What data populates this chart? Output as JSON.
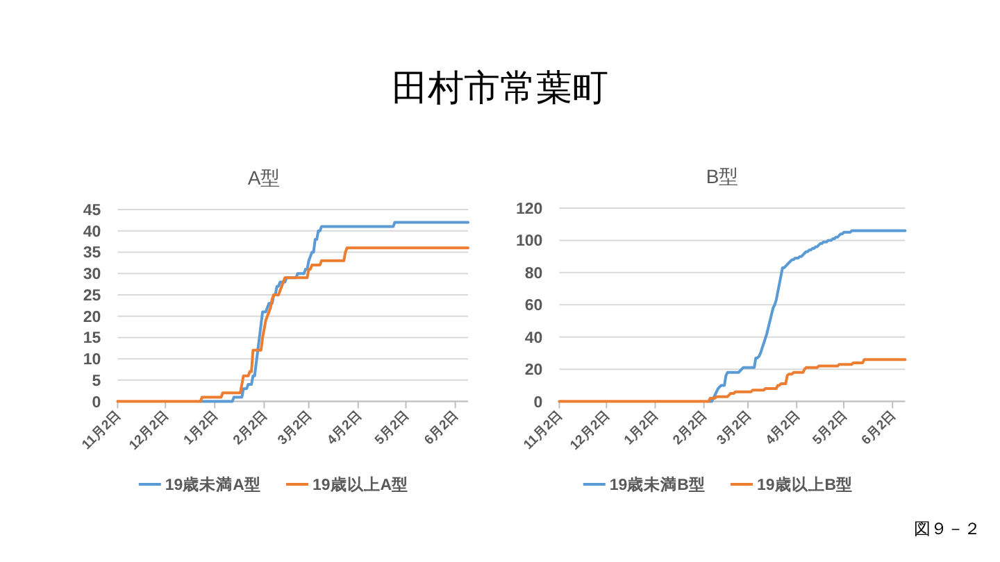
{
  "chart_data": [
    {
      "type": "other",
      "title": "田村市常葉町",
      "annotations": [
        "図９－２"
      ]
    },
    {
      "type": "line",
      "title": "A型",
      "categories": [
        "11月2日",
        null,
        null,
        null,
        null,
        null,
        null,
        null,
        null,
        null,
        null,
        null,
        null,
        null,
        null,
        null,
        null,
        null,
        null,
        null,
        null,
        null,
        null,
        null,
        null,
        null,
        null,
        null,
        null,
        null,
        "12月2日",
        null,
        null,
        null,
        null,
        null,
        null,
        null,
        null,
        null,
        null,
        null,
        null,
        null,
        null,
        null,
        null,
        null,
        null,
        null,
        null,
        null,
        null,
        null,
        null,
        null,
        null,
        null,
        null,
        null,
        null,
        "1月2日",
        null,
        null,
        null,
        null,
        null,
        null,
        null,
        null,
        null,
        null,
        null,
        null,
        null,
        null,
        null,
        null,
        null,
        null,
        null,
        null,
        null,
        null,
        null,
        null,
        null,
        null,
        null,
        null,
        null,
        null,
        "2月2日",
        null,
        null,
        null,
        null,
        null,
        null,
        null,
        null,
        null,
        null,
        null,
        null,
        null,
        null,
        null,
        null,
        null,
        null,
        null,
        null,
        null,
        null,
        null,
        null,
        null,
        null,
        null,
        "3月2日",
        null,
        null,
        null,
        null,
        null,
        null,
        null,
        null,
        null,
        null,
        null,
        null,
        null,
        null,
        null,
        null,
        null,
        null,
        null,
        null,
        null,
        null,
        null,
        null,
        null,
        null,
        null,
        null,
        null,
        null,
        "4月2日",
        null,
        null,
        null,
        null,
        null,
        null,
        null,
        null,
        null,
        null,
        null,
        null,
        null,
        null,
        null,
        null,
        null,
        null,
        null,
        null,
        null,
        null,
        null,
        null,
        null,
        null,
        null,
        null,
        null,
        "5月2日",
        null,
        null,
        null,
        null,
        null,
        null,
        null,
        null,
        null,
        null,
        null,
        null,
        null,
        null,
        null,
        null,
        null,
        null,
        null,
        null,
        null,
        null,
        null,
        null,
        null,
        null,
        null,
        null,
        null,
        null,
        "6月2日",
        null,
        null,
        null,
        null,
        null,
        null,
        null,
        null
      ],
      "ylim": [
        0,
        45
      ],
      "yticks": [
        0,
        5,
        10,
        15,
        20,
        25,
        30,
        35,
        40,
        45
      ],
      "grid": "y",
      "legend": "bottom",
      "series": [
        {
          "name": "19歳未満A型",
          "color": "#5b9bd5",
          "values": [
            null,
            null,
            null,
            null,
            null,
            null,
            null,
            null,
            null,
            null,
            null,
            null,
            null,
            null,
            null,
            null,
            null,
            null,
            null,
            null,
            null,
            null,
            null,
            null,
            null,
            null,
            null,
            null,
            null,
            null,
            null,
            null,
            null,
            null,
            null,
            null,
            null,
            null,
            null,
            null,
            null,
            null,
            null,
            null,
            null,
            null,
            null,
            null,
            null,
            null,
            null,
            null,
            0,
            0,
            0,
            0,
            0,
            0,
            0,
            0,
            0,
            0,
            0,
            0,
            0,
            0,
            0,
            0,
            0,
            0,
            0,
            0,
            0,
            1,
            1,
            1,
            1,
            1,
            1,
            3,
            3,
            3,
            4,
            4,
            4,
            6,
            6,
            9,
            12,
            15,
            18,
            21,
            21,
            21,
            22,
            23,
            23,
            23,
            25,
            25,
            27,
            27,
            28,
            28,
            28,
            28,
            29,
            29,
            29,
            29,
            29,
            29,
            29,
            30,
            30,
            30,
            30,
            30,
            31,
            31,
            33,
            34,
            35,
            35,
            38,
            38,
            40,
            40,
            41,
            41,
            41,
            41,
            41,
            41,
            41,
            41,
            41,
            41,
            41,
            41,
            41,
            41,
            41,
            41,
            41,
            41,
            41,
            41,
            41,
            41,
            41,
            41,
            41,
            41,
            41,
            41,
            41,
            41,
            41,
            41,
            41,
            41,
            41,
            41,
            41,
            41,
            41,
            41,
            41,
            41,
            41,
            41,
            41,
            41,
            42,
            42,
            42,
            42,
            42,
            42,
            42,
            42,
            42,
            42,
            42,
            42,
            42,
            42,
            42,
            42,
            42,
            42,
            42,
            42,
            42,
            42,
            42,
            42,
            42,
            42,
            42,
            42,
            42,
            42,
            42,
            42,
            42,
            42,
            42,
            42,
            42,
            42,
            42,
            42,
            42,
            42,
            42,
            42,
            42,
            42,
            42
          ]
        },
        {
          "name": "19歳以上A型",
          "color": "#ed7d31",
          "values": [
            0,
            0,
            0,
            0,
            0,
            0,
            0,
            0,
            0,
            0,
            0,
            0,
            0,
            0,
            0,
            0,
            0,
            0,
            0,
            0,
            0,
            0,
            0,
            0,
            0,
            0,
            0,
            0,
            0,
            0,
            0,
            0,
            0,
            0,
            0,
            0,
            0,
            0,
            0,
            0,
            0,
            0,
            0,
            0,
            0,
            0,
            0,
            0,
            0,
            0,
            0,
            0,
            0,
            1,
            1,
            1,
            1,
            1,
            1,
            1,
            1,
            1,
            1,
            1,
            1,
            1,
            2,
            2,
            2,
            2,
            2,
            2,
            2,
            2,
            2,
            2,
            2,
            2,
            4,
            6,
            6,
            6,
            6,
            7,
            7,
            12,
            12,
            12,
            12,
            12,
            12,
            15,
            17,
            19,
            20,
            21,
            22,
            24,
            25,
            25,
            25,
            25,
            26,
            27,
            28,
            29,
            29,
            29,
            29,
            29,
            29,
            29,
            29,
            29,
            29,
            29,
            29,
            29,
            29,
            29,
            31,
            31,
            32,
            32,
            32,
            32,
            32,
            32,
            33,
            33,
            33,
            33,
            33,
            33,
            33,
            33,
            33,
            33,
            33,
            33,
            33,
            33,
            33,
            35,
            36,
            36,
            36,
            36,
            36,
            36,
            36,
            36,
            36,
            36,
            36,
            36,
            36,
            36,
            36,
            36,
            36,
            36,
            36,
            36,
            36,
            36,
            36,
            36,
            36,
            36,
            36,
            36,
            36,
            36,
            36,
            36,
            36,
            36,
            36,
            36,
            36,
            36,
            36,
            36,
            36,
            36,
            36,
            36,
            36,
            36,
            36,
            36,
            36,
            36,
            36,
            36,
            36,
            36,
            36,
            36,
            36,
            36,
            36,
            36,
            36,
            36,
            36,
            36,
            36,
            36,
            36,
            36,
            36,
            36,
            36,
            36,
            36,
            36,
            36,
            36,
            36
          ]
        }
      ]
    },
    {
      "type": "line",
      "title": "B型",
      "categories": [
        "11月2日",
        null,
        null,
        null,
        null,
        null,
        null,
        null,
        null,
        null,
        null,
        null,
        null,
        null,
        null,
        null,
        null,
        null,
        null,
        null,
        null,
        null,
        null,
        null,
        null,
        null,
        null,
        null,
        null,
        null,
        "12月2日",
        null,
        null,
        null,
        null,
        null,
        null,
        null,
        null,
        null,
        null,
        null,
        null,
        null,
        null,
        null,
        null,
        null,
        null,
        null,
        null,
        null,
        null,
        null,
        null,
        null,
        null,
        null,
        null,
        null,
        null,
        "1月2日",
        null,
        null,
        null,
        null,
        null,
        null,
        null,
        null,
        null,
        null,
        null,
        null,
        null,
        null,
        null,
        null,
        null,
        null,
        null,
        null,
        null,
        null,
        null,
        null,
        null,
        null,
        null,
        null,
        null,
        null,
        "2月2日",
        null,
        null,
        null,
        null,
        null,
        null,
        null,
        null,
        null,
        null,
        null,
        null,
        null,
        null,
        null,
        null,
        null,
        null,
        null,
        null,
        null,
        null,
        null,
        null,
        null,
        null,
        null,
        "3月2日",
        null,
        null,
        null,
        null,
        null,
        null,
        null,
        null,
        null,
        null,
        null,
        null,
        null,
        null,
        null,
        null,
        null,
        null,
        null,
        null,
        null,
        null,
        null,
        null,
        null,
        null,
        null,
        null,
        null,
        null,
        "4月2日",
        null,
        null,
        null,
        null,
        null,
        null,
        null,
        null,
        null,
        null,
        null,
        null,
        null,
        null,
        null,
        null,
        null,
        null,
        null,
        null,
        null,
        null,
        null,
        null,
        null,
        null,
        null,
        null,
        null,
        "5月2日",
        null,
        null,
        null,
        null,
        null,
        null,
        null,
        null,
        null,
        null,
        null,
        null,
        null,
        null,
        null,
        null,
        null,
        null,
        null,
        null,
        null,
        null,
        null,
        null,
        null,
        null,
        null,
        null,
        null,
        null,
        "6月2日",
        null,
        null,
        null,
        null,
        null,
        null,
        null,
        null
      ],
      "ylim": [
        0,
        120
      ],
      "yticks": [
        0,
        20,
        40,
        60,
        80,
        100,
        120
      ],
      "grid": "y",
      "legend": "bottom",
      "series": [
        {
          "name": "19歳未満B型",
          "color": "#5b9bd5",
          "values": [
            null,
            null,
            null,
            null,
            null,
            null,
            null,
            null,
            null,
            null,
            null,
            null,
            null,
            null,
            null,
            null,
            null,
            null,
            null,
            null,
            null,
            null,
            null,
            null,
            null,
            null,
            null,
            null,
            null,
            null,
            null,
            null,
            null,
            null,
            null,
            null,
            null,
            null,
            null,
            null,
            null,
            null,
            null,
            null,
            null,
            null,
            null,
            null,
            null,
            null,
            null,
            null,
            null,
            null,
            null,
            null,
            null,
            null,
            null,
            null,
            null,
            null,
            null,
            null,
            null,
            null,
            null,
            null,
            null,
            null,
            null,
            null,
            null,
            null,
            null,
            null,
            null,
            null,
            null,
            null,
            null,
            null,
            null,
            null,
            null,
            null,
            null,
            null,
            null,
            null,
            null,
            null,
            null,
            null,
            null,
            0,
            0,
            0,
            2,
            4,
            6,
            8,
            9,
            10,
            10,
            10,
            16,
            18,
            18,
            18,
            18,
            18,
            18,
            18,
            18,
            19,
            20,
            21,
            21,
            21,
            21,
            21,
            21,
            21,
            21,
            27,
            27,
            28,
            30,
            33,
            36,
            39,
            42,
            46,
            50,
            54,
            58,
            60,
            63,
            68,
            73,
            78,
            83,
            83,
            84,
            85,
            86,
            87,
            88,
            88,
            89,
            89,
            89,
            90,
            90,
            91,
            92,
            93,
            93,
            94,
            94,
            95,
            95,
            96,
            96,
            97,
            98,
            98,
            99,
            99,
            99,
            100,
            100,
            100,
            101,
            101,
            102,
            102,
            103,
            104,
            104,
            105,
            105,
            105,
            105,
            105,
            106,
            106,
            106,
            106,
            106,
            106,
            106,
            106,
            106,
            106,
            106,
            106,
            106,
            106,
            106,
            106,
            106,
            106,
            106,
            106,
            106,
            106,
            106,
            106,
            106,
            106,
            106,
            106,
            106,
            106,
            106,
            106,
            106,
            106,
            106
          ]
        },
        {
          "name": "19歳以上B型",
          "color": "#ed7d31",
          "values": [
            0,
            0,
            0,
            0,
            0,
            0,
            0,
            0,
            0,
            0,
            0,
            0,
            0,
            0,
            0,
            0,
            0,
            0,
            0,
            0,
            0,
            0,
            0,
            0,
            0,
            0,
            0,
            0,
            0,
            0,
            0,
            0,
            0,
            0,
            0,
            0,
            0,
            0,
            0,
            0,
            0,
            0,
            0,
            0,
            0,
            0,
            0,
            0,
            0,
            0,
            0,
            0,
            0,
            0,
            0,
            0,
            0,
            0,
            0,
            0,
            0,
            0,
            0,
            0,
            0,
            0,
            0,
            0,
            0,
            0,
            0,
            0,
            0,
            0,
            0,
            0,
            0,
            0,
            0,
            0,
            0,
            0,
            0,
            0,
            0,
            0,
            0,
            0,
            0,
            0,
            0,
            0,
            0,
            0,
            0,
            0,
            2,
            2,
            2,
            2,
            3,
            3,
            3,
            3,
            3,
            3,
            3,
            3,
            4,
            5,
            5,
            5,
            6,
            6,
            6,
            6,
            6,
            6,
            6,
            6,
            6,
            6,
            6,
            7,
            7,
            7,
            7,
            7,
            7,
            7,
            7,
            8,
            8,
            8,
            8,
            8,
            8,
            8,
            8,
            10,
            10,
            11,
            11,
            11,
            11,
            16,
            17,
            17,
            17,
            18,
            18,
            18,
            18,
            18,
            18,
            18,
            20,
            21,
            21,
            21,
            21,
            21,
            21,
            21,
            21,
            22,
            22,
            22,
            22,
            22,
            22,
            22,
            22,
            22,
            22,
            22,
            22,
            22,
            23,
            23,
            23,
            23,
            23,
            23,
            23,
            23,
            23,
            24,
            24,
            24,
            24,
            24,
            24,
            24,
            26,
            26,
            26,
            26,
            26,
            26,
            26,
            26,
            26,
            26,
            26,
            26,
            26,
            26,
            26,
            26,
            26,
            26,
            26,
            26,
            26,
            26,
            26,
            26,
            26,
            26,
            26
          ]
        }
      ]
    }
  ]
}
